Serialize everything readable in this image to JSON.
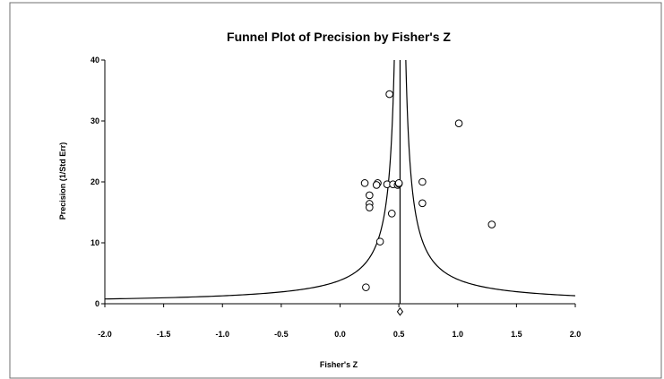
{
  "chart_data": {
    "type": "scatter",
    "title": "Funnel Plot of Precision by Fisher's Z",
    "xlabel": "Fisher's Z",
    "ylabel": "Precision (1/Std Err)",
    "xlim": [
      -2.0,
      2.0
    ],
    "ylim": [
      0,
      40
    ],
    "x_ticks": [
      -2.0,
      -1.5,
      -1.0,
      -0.5,
      0.0,
      0.5,
      1.0,
      1.5,
      2.0
    ],
    "x_tick_labels": [
      "-2.0",
      "-1.5",
      "-1.0",
      "-0.5",
      "0.0",
      "0.5",
      "1.0",
      "1.5",
      "2.0"
    ],
    "y_ticks": [
      0,
      10,
      20,
      30,
      40
    ],
    "y_tick_labels": [
      "0",
      "10",
      "20",
      "30",
      "40"
    ],
    "grid": false,
    "pooled_effect": 0.51,
    "funnel_multiplier": 1.96,
    "points": [
      {
        "x": 0.42,
        "y": 34.4
      },
      {
        "x": 1.01,
        "y": 29.6
      },
      {
        "x": 0.21,
        "y": 19.8
      },
      {
        "x": 0.32,
        "y": 19.8
      },
      {
        "x": 0.31,
        "y": 19.5
      },
      {
        "x": 0.4,
        "y": 19.6
      },
      {
        "x": 0.45,
        "y": 19.6
      },
      {
        "x": 0.49,
        "y": 19.5
      },
      {
        "x": 0.5,
        "y": 19.7
      },
      {
        "x": 0.5,
        "y": 19.8
      },
      {
        "x": 0.7,
        "y": 20.0
      },
      {
        "x": 0.25,
        "y": 17.8
      },
      {
        "x": 0.25,
        "y": 16.4
      },
      {
        "x": 0.25,
        "y": 15.8
      },
      {
        "x": 0.7,
        "y": 16.5
      },
      {
        "x": 0.44,
        "y": 14.8
      },
      {
        "x": 1.29,
        "y": 13.0
      },
      {
        "x": 0.34,
        "y": 10.2
      },
      {
        "x": 0.22,
        "y": 2.7
      }
    ],
    "combined_marker": {
      "x": 0.51,
      "y": -1.3,
      "shape": "diamond"
    },
    "colors": {
      "line": "#000000",
      "marker_fill": "#ffffff",
      "marker_stroke": "#000000",
      "frame": "#6f6f6f"
    }
  }
}
